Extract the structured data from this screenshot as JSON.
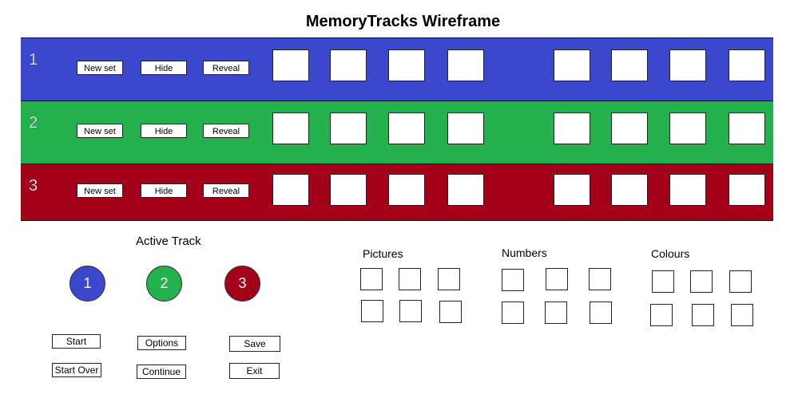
{
  "title": "MemoryTracks Wireframe",
  "tracks": [
    {
      "number": "1",
      "color": "#3b47cc",
      "new_set": "New set",
      "hide": "Hide",
      "reveal": "Reveal"
    },
    {
      "number": "2",
      "color": "#22b14c",
      "new_set": "New set",
      "hide": "Hide",
      "reveal": "Reveal"
    },
    {
      "number": "3",
      "color": "#a5001a",
      "new_set": "New set",
      "hide": "Hide",
      "reveal": "Reveal"
    }
  ],
  "active_track": {
    "label": "Active Track",
    "options": [
      {
        "number": "1",
        "color": "#3b47cc"
      },
      {
        "number": "2",
        "color": "#22b14c"
      },
      {
        "number": "3",
        "color": "#a5001a"
      }
    ]
  },
  "controls": {
    "start": "Start",
    "options": "Options",
    "save": "Save",
    "start_over": "Start Over",
    "continue": "Continue",
    "exit": "Exit"
  },
  "categories": {
    "pictures": "Pictures",
    "numbers": "Numbers",
    "colours": "Colours"
  }
}
